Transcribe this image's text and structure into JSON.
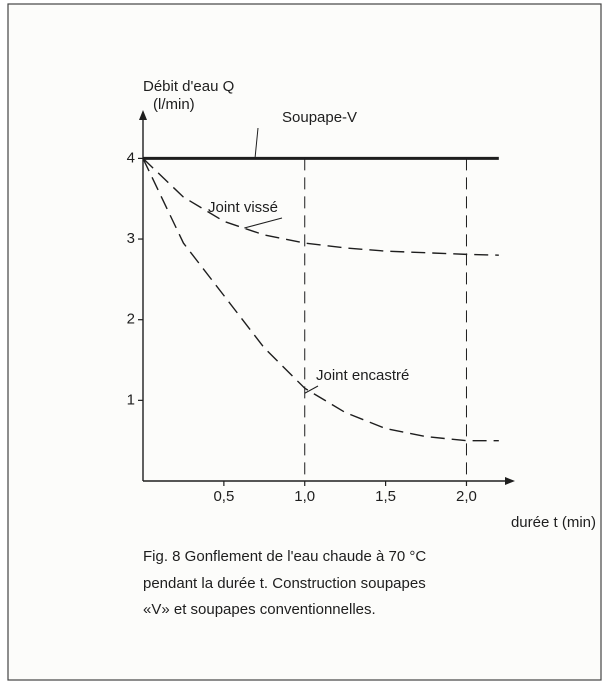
{
  "chart_data": {
    "type": "line",
    "y_label_lines": [
      "Débit d'eau Q",
      "(l/min)"
    ],
    "x_label": "durée t (min)",
    "x": [
      0,
      0.25,
      0.5,
      0.75,
      1.0,
      1.25,
      1.5,
      1.75,
      2.0,
      2.2
    ],
    "series": [
      {
        "name": "Soupape-V",
        "color": "#1e1e1e",
        "style": "solid",
        "values": [
          4,
          4,
          4,
          4,
          4,
          4,
          4,
          4,
          4,
          4
        ]
      },
      {
        "name": "Joint vissé",
        "color": "#1e1e1e",
        "style": "dashed",
        "values": [
          4,
          3.52,
          3.22,
          3.05,
          2.95,
          2.89,
          2.85,
          2.83,
          2.81,
          2.8
        ]
      },
      {
        "name": "Joint encastré",
        "color": "#1e1e1e",
        "style": "dashed",
        "values": [
          4,
          2.95,
          2.3,
          1.65,
          1.15,
          0.85,
          0.65,
          0.55,
          0.5,
          0.5
        ]
      }
    ],
    "vlines": [
      1.0,
      2.0
    ],
    "xlim": [
      0,
      2.3
    ],
    "ylim": [
      0,
      4.6
    ],
    "xticks": [
      {
        "value": 0.5,
        "label": "0,5"
      },
      {
        "value": 1.0,
        "label": "1,0"
      },
      {
        "value": 1.5,
        "label": "1,5"
      },
      {
        "value": 2.0,
        "label": "2,0"
      }
    ],
    "yticks": [
      1,
      2,
      3,
      4
    ],
    "caption": [
      "Fig. 8   Gonflement de l'eau chaude à 70 °C",
      "pendant la durée t. Construction soupapes",
      "«V» et soupapes conventionnelles."
    ]
  }
}
